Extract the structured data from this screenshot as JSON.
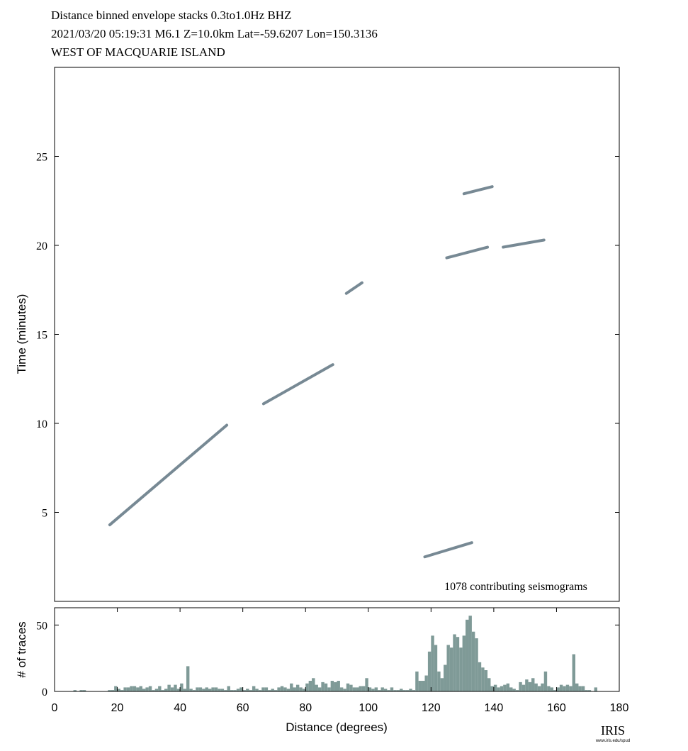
{
  "chart_data": [
    {
      "type": "line",
      "title": "Distance binned envelope stacks  0.3to1.0Hz  BHZ",
      "subtitle": "2021/03/20  05:19:31  M6.1  Z=10.0km Lat=-59.6207 Lon=150.3136",
      "region": "WEST OF MACQUARIE ISLAND",
      "y_label": "Time (minutes)",
      "annotation": "1078 contributing seismograms",
      "xlim": [
        0,
        180
      ],
      "ylim": [
        0,
        30
      ],
      "yticks": [
        5,
        10,
        15,
        20,
        25
      ],
      "series": [
        {
          "color": "#4a6270",
          "x": [
            17.6,
            54.9
          ],
          "values": [
            4.3,
            9.9
          ]
        },
        {
          "color": "#4a6270",
          "x": [
            66.6,
            88.7
          ],
          "values": [
            11.1,
            13.3
          ]
        },
        {
          "color": "#4a6270",
          "x": [
            93,
            98
          ],
          "values": [
            17.3,
            17.9
          ]
        },
        {
          "color": "#4a6270",
          "x": [
            118,
            133
          ],
          "values": [
            2.5,
            3.3
          ]
        },
        {
          "color": "#4a6270",
          "x": [
            125,
            138
          ],
          "values": [
            19.3,
            19.9
          ]
        },
        {
          "color": "#4a6270",
          "x": [
            130.5,
            139.5
          ],
          "values": [
            22.9,
            23.3
          ]
        },
        {
          "color": "#4a6270",
          "x": [
            143,
            156
          ],
          "values": [
            19.9,
            20.3
          ]
        }
      ]
    },
    {
      "type": "histogram",
      "x_label": "Distance (degrees)",
      "y_label": "# of traces",
      "color": "#7f9a97",
      "xlim": [
        0,
        180
      ],
      "ylim": [
        0,
        63
      ],
      "xticks": [
        0,
        20,
        40,
        60,
        80,
        100,
        120,
        140,
        160,
        180
      ],
      "yticks": [
        0,
        50
      ],
      "bins": [
        6,
        7,
        8,
        9,
        10,
        11,
        12,
        13,
        14,
        15,
        16,
        17,
        18,
        19,
        20,
        21,
        22,
        23,
        24,
        25,
        26,
        27,
        28,
        29,
        30,
        31,
        32,
        33,
        34,
        35,
        36,
        37,
        38,
        39,
        40,
        41,
        42,
        43,
        44,
        45,
        46,
        47,
        48,
        49,
        50,
        51,
        52,
        53,
        54,
        55,
        56,
        57,
        58,
        59,
        60,
        61,
        62,
        63,
        64,
        65,
        66,
        67,
        68,
        69,
        70,
        71,
        72,
        73,
        74,
        75,
        76,
        77,
        78,
        79,
        80,
        81,
        82,
        83,
        84,
        85,
        86,
        87,
        88,
        89,
        90,
        91,
        92,
        93,
        94,
        95,
        96,
        97,
        98,
        99,
        100,
        101,
        102,
        103,
        104,
        105,
        106,
        107,
        108,
        109,
        110,
        111,
        112,
        113,
        114,
        115,
        116,
        117,
        118,
        119,
        120,
        121,
        122,
        123,
        124,
        125,
        126,
        127,
        128,
        129,
        130,
        131,
        132,
        133,
        134,
        135,
        136,
        137,
        138,
        139,
        140,
        141,
        142,
        143,
        144,
        145,
        146,
        147,
        148,
        149,
        150,
        151,
        152,
        153,
        154,
        155,
        156,
        157,
        158,
        159,
        160,
        161,
        162,
        163,
        164,
        165,
        166,
        167,
        168,
        169,
        170,
        171,
        172,
        173,
        174
      ],
      "values": [
        1,
        0,
        1,
        1,
        0,
        0,
        0,
        0,
        0,
        0,
        0,
        1,
        1,
        4,
        2,
        1,
        3,
        3,
        4,
        4,
        3,
        4,
        2,
        3,
        4,
        1,
        2,
        4,
        1,
        2,
        5,
        3,
        5,
        2,
        6,
        2,
        19,
        2,
        1,
        3,
        3,
        2,
        3,
        2,
        3,
        3,
        2,
        2,
        1,
        4,
        1,
        1,
        2,
        3,
        1,
        2,
        1,
        4,
        2,
        1,
        3,
        3,
        1,
        2,
        1,
        3,
        4,
        3,
        2,
        6,
        3,
        5,
        3,
        2,
        6,
        8,
        10,
        5,
        3,
        7,
        6,
        3,
        8,
        7,
        8,
        3,
        2,
        6,
        5,
        3,
        3,
        4,
        4,
        10,
        3,
        2,
        3,
        1,
        3,
        2,
        1,
        3,
        1,
        1,
        2,
        1,
        1,
        2,
        1,
        15,
        8,
        8,
        12,
        30,
        42,
        35,
        15,
        10,
        20,
        35,
        33,
        43,
        41,
        33,
        42,
        54,
        57,
        45,
        40,
        22,
        18,
        16,
        10,
        4,
        5,
        3,
        4,
        5,
        6,
        3,
        2,
        1,
        7,
        5,
        9,
        7,
        10,
        6,
        4,
        6,
        15,
        4,
        3,
        1,
        3,
        5,
        4,
        5,
        4,
        28,
        6,
        4,
        4,
        1,
        1,
        0,
        3,
        0
      ]
    }
  ],
  "logo": "IRIS",
  "logo_url": "www.iris.edu/spud"
}
